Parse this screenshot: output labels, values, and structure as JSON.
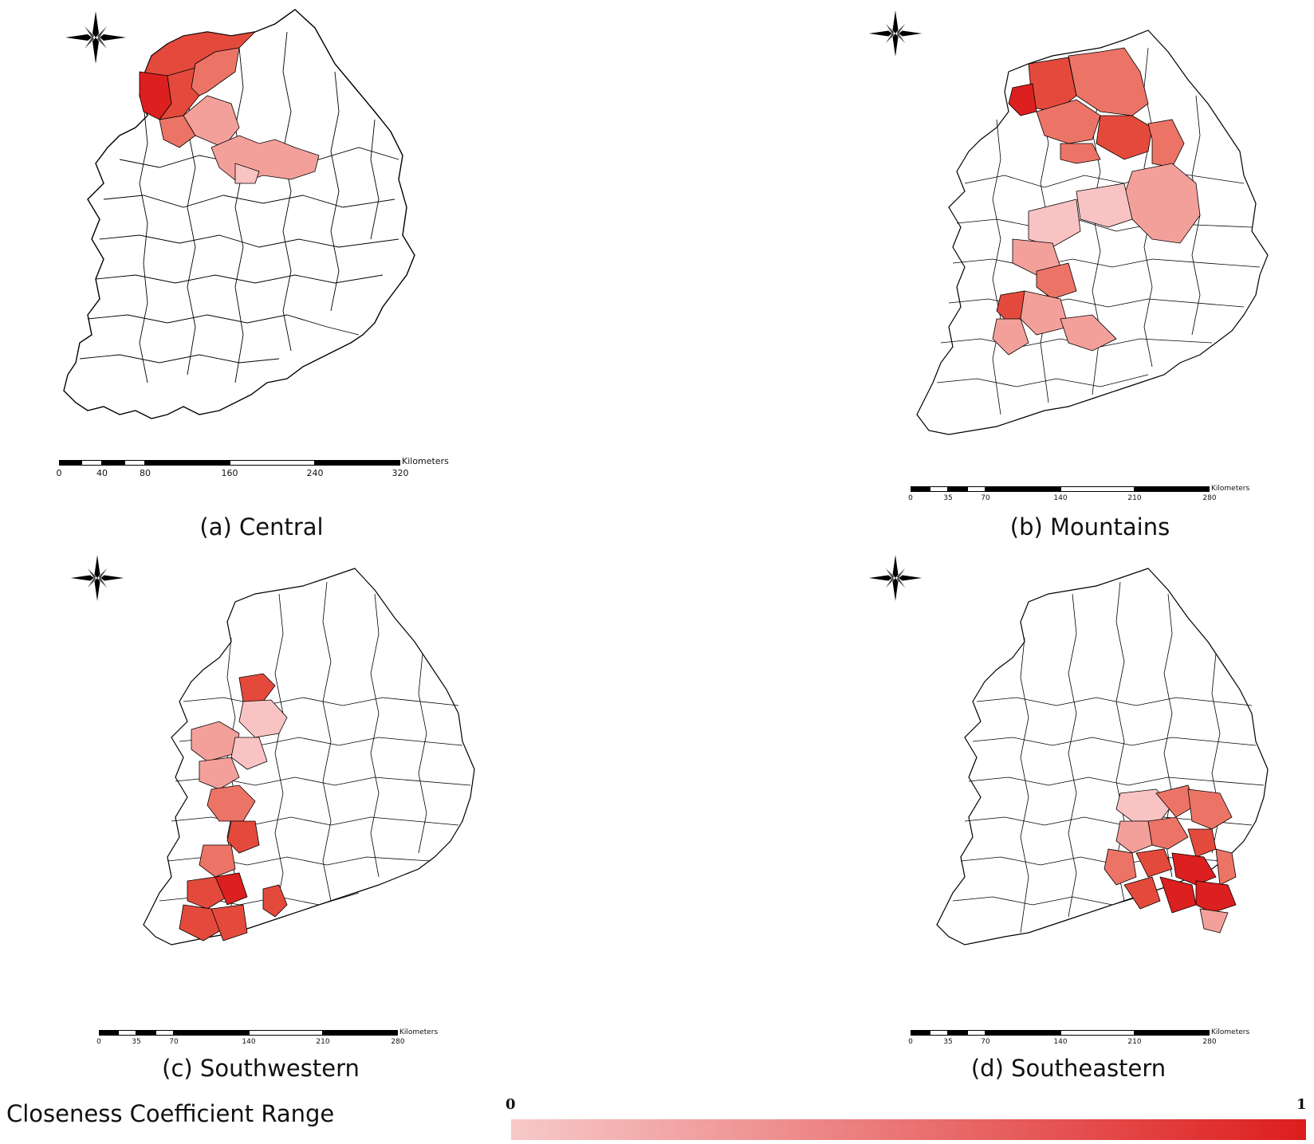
{
  "panels": [
    {
      "caption": "(a) Central",
      "scale_unit": "Kilometers",
      "scale_ticks": [
        "0",
        "40",
        "80",
        "160",
        "240",
        "320"
      ],
      "compass": [
        "N",
        "W",
        "E",
        "S"
      ]
    },
    {
      "caption": "(b) Mountains",
      "scale_unit": "Kilometers",
      "scale_ticks": [
        "0",
        "35",
        "70",
        "140",
        "210",
        "280"
      ],
      "compass": [
        "N",
        "W",
        "E",
        "S"
      ]
    },
    {
      "caption": "(c) Southwestern",
      "scale_unit": "Kilometers",
      "scale_ticks": [
        "0",
        "35",
        "70",
        "140",
        "210",
        "280"
      ],
      "compass": [
        "N",
        "W",
        "E",
        "S"
      ]
    },
    {
      "caption": "(d) Southeastern",
      "scale_unit": "Kilometers",
      "scale_ticks": [
        "0",
        "35",
        "70",
        "140",
        "210",
        "280"
      ],
      "compass": [
        "N",
        "W",
        "E",
        "S"
      ]
    }
  ],
  "legend": {
    "title": "Closeness Coefficient Range",
    "min_label": "0",
    "max_label": "1",
    "color_low": "#f7c9c9",
    "color_high": "#dd1d1d"
  },
  "colors": {
    "outline": "#000000",
    "background": "#ffffff",
    "shade_1": "#f9c3c3",
    "shade_2": "#f4a09a",
    "shade_3": "#ec7466",
    "shade_4": "#e44a3c",
    "shade_5": "#dc1f1f"
  }
}
